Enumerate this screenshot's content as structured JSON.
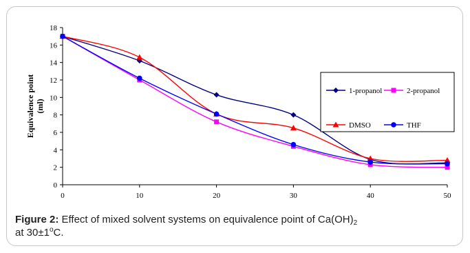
{
  "chart_data": {
    "type": "line",
    "title": "",
    "xlabel": "",
    "ylabel": "Equivalence point (ml)",
    "ylabel_lines": [
      "Equivalence point",
      "(ml)"
    ],
    "x": [
      0,
      10,
      20,
      30,
      40,
      50
    ],
    "x_ticks": [
      "0",
      "10",
      "20",
      "30",
      "40",
      "50"
    ],
    "y_ticks": [
      "0",
      "2",
      "4",
      "6",
      "8",
      "10",
      "12",
      "14",
      "16",
      "18"
    ],
    "xlim": [
      0,
      50
    ],
    "ylim": [
      0,
      18
    ],
    "grid": false,
    "legend_position": "right",
    "series": [
      {
        "name": "1-propanol",
        "values": [
          17,
          14.2,
          10.3,
          8.0,
          2.9,
          2.5
        ],
        "color": "#000080",
        "marker": "diamond"
      },
      {
        "name": "2-propanol",
        "values": [
          17,
          12.0,
          7.2,
          4.4,
          2.3,
          2.0
        ],
        "color": "#ff00ff",
        "marker": "square"
      },
      {
        "name": "DMSO",
        "values": [
          17,
          14.6,
          8.1,
          6.5,
          3.0,
          2.8
        ],
        "color": "#ff0000",
        "marker": "triangle"
      },
      {
        "name": "THF",
        "values": [
          17,
          12.2,
          8.1,
          4.6,
          2.6,
          2.4
        ],
        "color": "#0000ff",
        "marker": "circle"
      }
    ]
  },
  "caption": {
    "label": "Figure 2:",
    "text_main": " Effect of mixed solvent systems on equivalence point of Ca(OH)",
    "text_sub": "2",
    "text_line2_pre": "at 30±1",
    "text_sup": "o",
    "text_line2_post": "C."
  }
}
